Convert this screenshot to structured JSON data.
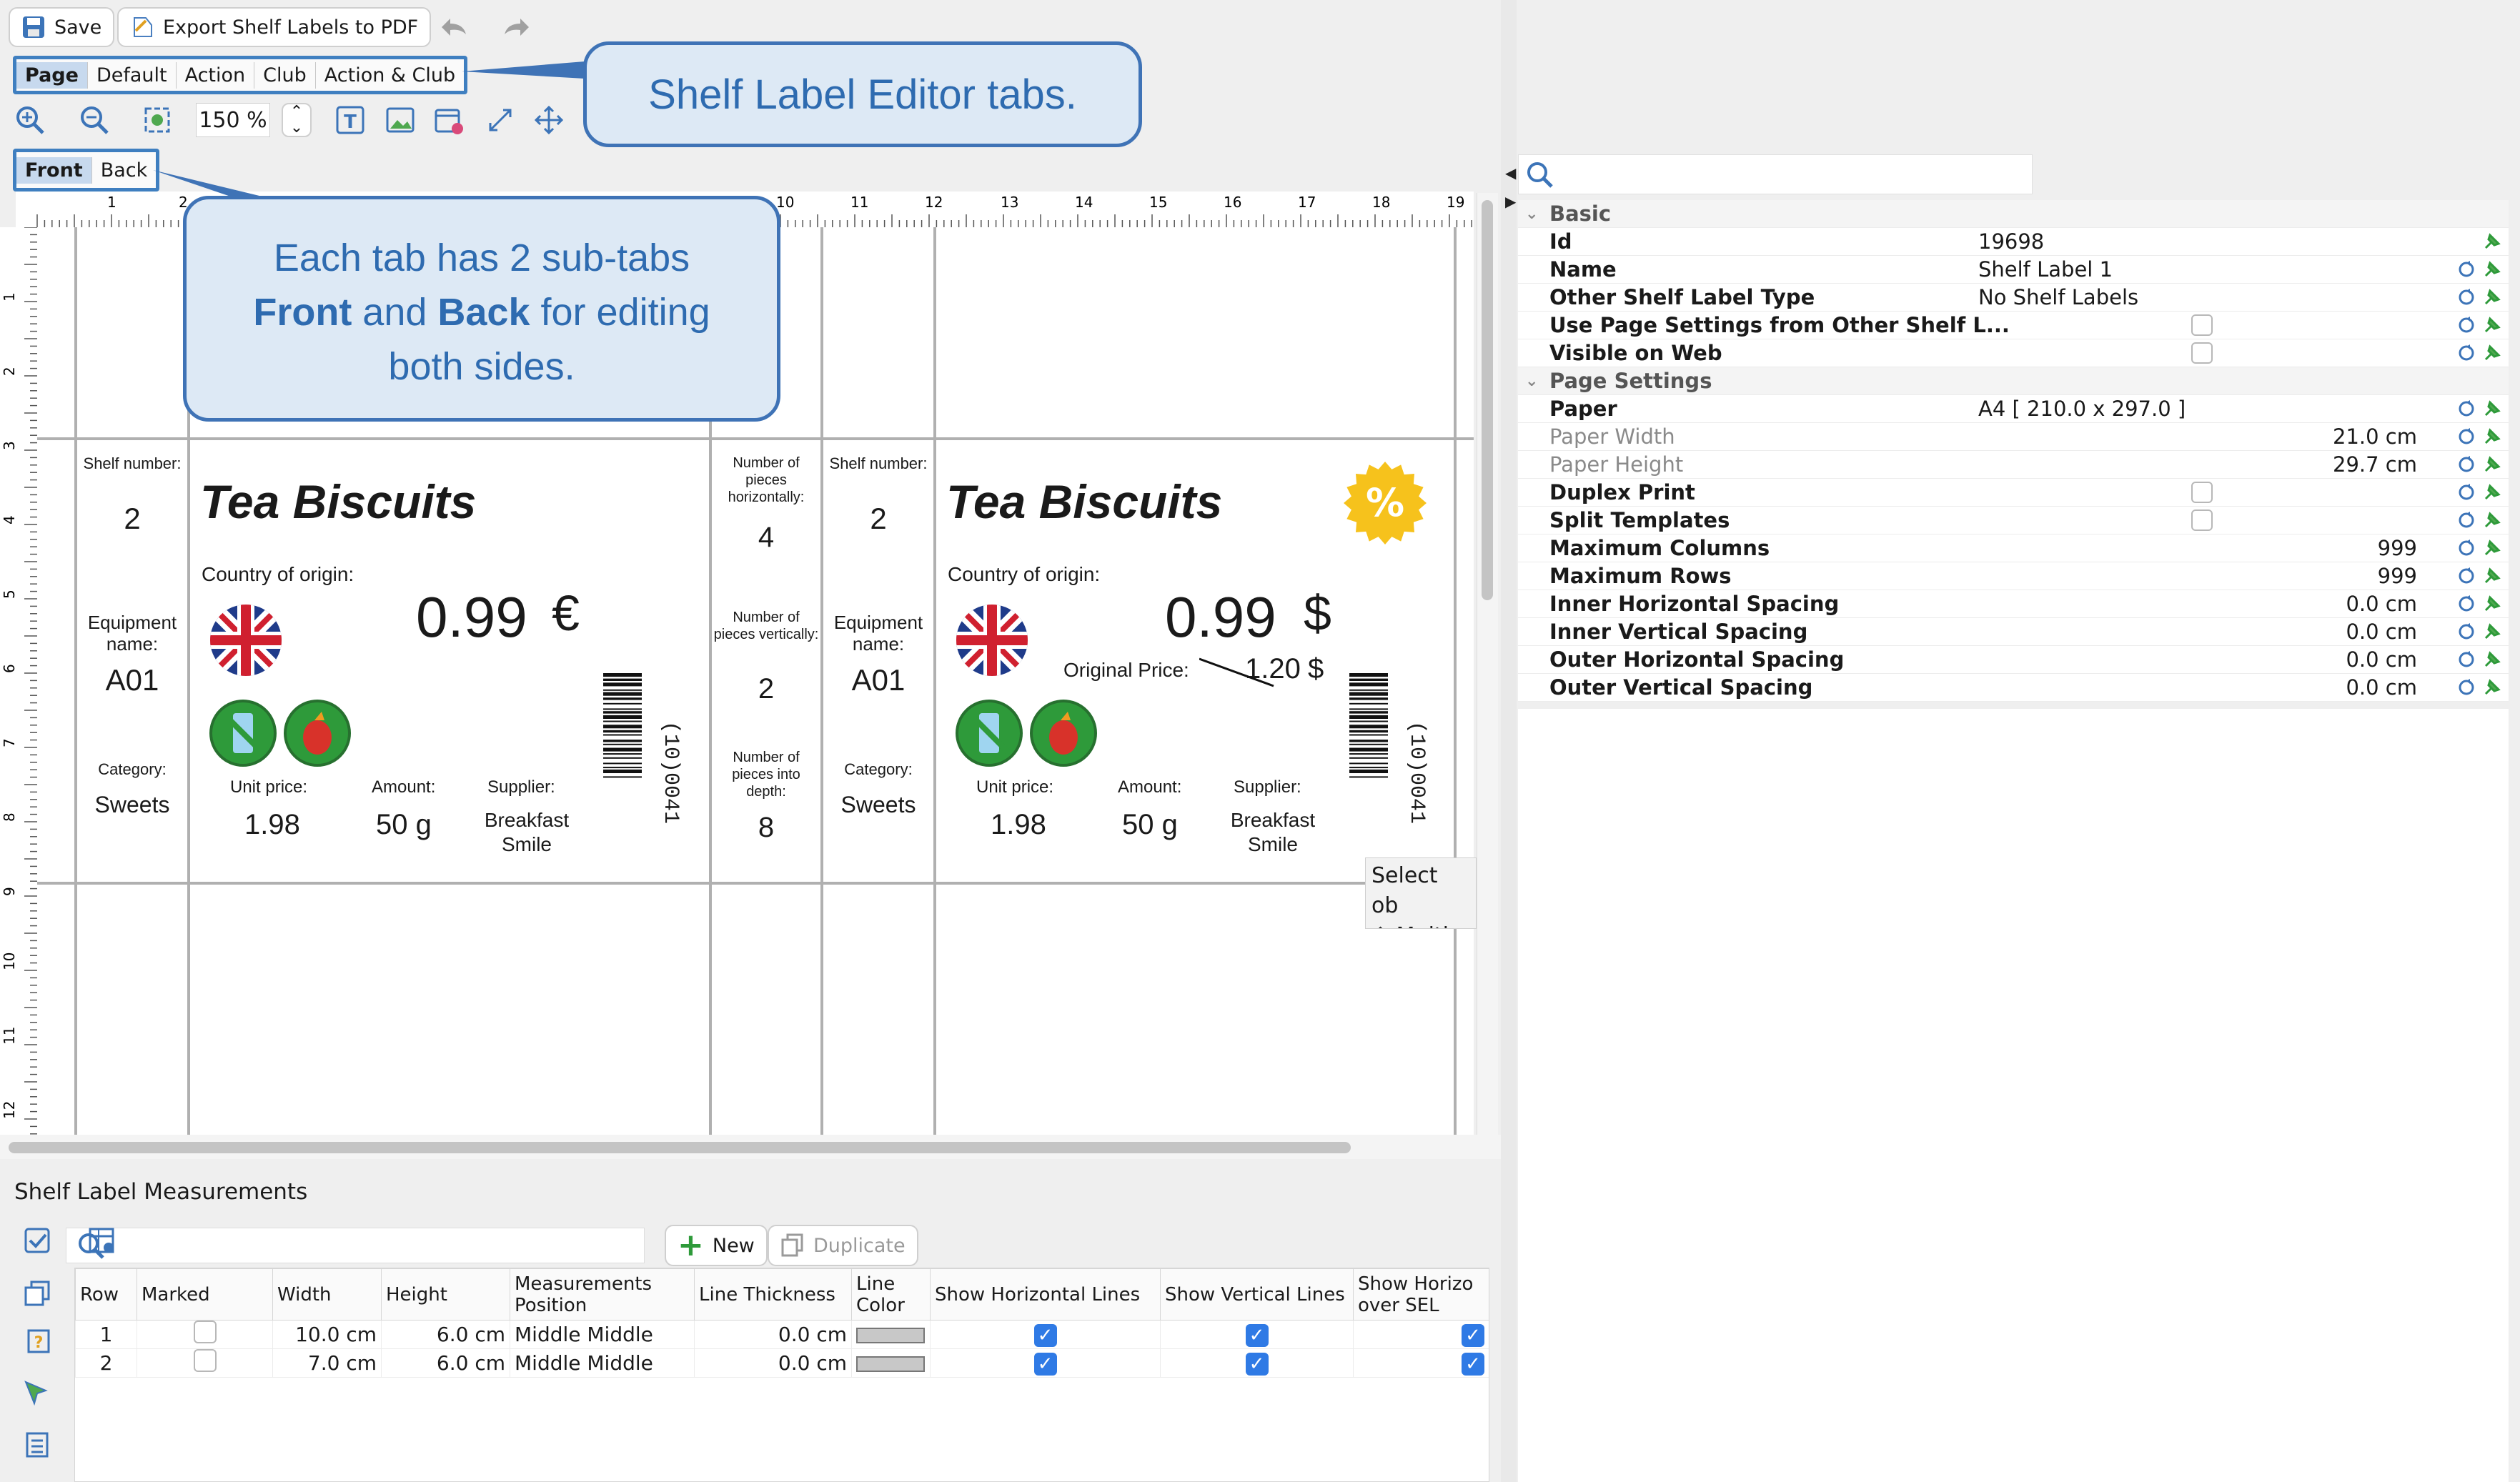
{
  "toolbar": {
    "save_label": "Save",
    "export_label": "Export Shelf Labels to PDF",
    "zoom_value": "150 %"
  },
  "tabs": [
    {
      "label": "Page"
    },
    {
      "label": "Default"
    },
    {
      "label": "Action"
    },
    {
      "label": "Club"
    },
    {
      "label": "Action & Club"
    }
  ],
  "subtabs": [
    {
      "label": "Front"
    },
    {
      "label": "Back"
    }
  ],
  "callouts": {
    "tabs_text": "Shelf Label Editor tabs.",
    "subtabs_line1": "Each tab has 2 sub-tabs",
    "subtabs_front": "Front",
    "subtabs_and": " and ",
    "subtabs_back": "Back",
    "subtabs_rest": " for editing",
    "subtabs_line3": "both sides."
  },
  "ruler": {
    "top": [
      "1",
      "2",
      "10",
      "11",
      "12",
      "13",
      "14",
      "15",
      "16",
      "17",
      "18",
      "19"
    ],
    "left": [
      "1",
      "2",
      "3",
      "4",
      "5",
      "6",
      "7",
      "8",
      "9",
      "10",
      "11",
      "12"
    ]
  },
  "label": {
    "shelf_number_caption": "Shelf number:",
    "shelf_number": "2",
    "equipment_caption": "Equipment name:",
    "equipment": "A01",
    "category_caption": "Category:",
    "category": "Sweets",
    "title": "Tea Biscuits",
    "country_caption": "Country of origin:",
    "price": "0.99",
    "currency_left": "€",
    "currency_right": "$",
    "original_price_caption": "Original Price:",
    "original_price": "1.20",
    "unit_price_caption": "Unit price:",
    "unit_price": "1.98",
    "amount_caption": "Amount:",
    "amount": "50 g",
    "supplier_caption": "Supplier:",
    "supplier_line1": "Breakfast",
    "supplier_line2": "Smile",
    "barcode_text": "(10)0041",
    "pieces_h_caption": "Number of pieces horizontally:",
    "pieces_h": "4",
    "pieces_v_caption": "Number of pieces vertically:",
    "pieces_v": "2",
    "pieces_d_caption": "Number of pieces into depth:",
    "pieces_d": "8",
    "discount_symbol": "%"
  },
  "tooltip": {
    "line1": "Select ob",
    "line2": "⇧ Multip"
  },
  "properties": {
    "sections": {
      "basic": "Basic",
      "page": "Page Settings"
    },
    "rows": [
      {
        "name": "Id",
        "value": "19698"
      },
      {
        "name": "Name",
        "value": "Shelf Label 1"
      },
      {
        "name": "Other Shelf Label Type",
        "value": "No Shelf Labels"
      },
      {
        "name": "Use Page Settings from Other Shelf L...",
        "value": ""
      },
      {
        "name": "Visible on Web",
        "value": ""
      },
      {
        "name": "Paper",
        "value": "A4 [ 210.0 x 297.0 ]"
      },
      {
        "name": "Paper Width",
        "value": "21.0 cm"
      },
      {
        "name": "Paper Height",
        "value": "29.7 cm"
      },
      {
        "name": "Duplex Print",
        "value": ""
      },
      {
        "name": "Split Templates",
        "value": ""
      },
      {
        "name": "Maximum Columns",
        "value": "999"
      },
      {
        "name": "Maximum Rows",
        "value": "999"
      },
      {
        "name": "Inner Horizontal Spacing",
        "value": "0.0 cm"
      },
      {
        "name": "Inner Vertical Spacing",
        "value": "0.0 cm"
      },
      {
        "name": "Outer Horizontal Spacing",
        "value": "0.0 cm"
      },
      {
        "name": "Outer Vertical Spacing",
        "value": "0.0 cm"
      }
    ]
  },
  "measurements": {
    "title": "Shelf Label Measurements",
    "new_label": "New",
    "duplicate_label": "Duplicate",
    "columns": [
      "Row",
      "Marked",
      "Width",
      "Height",
      "Measurements Position",
      "Line Thickness",
      "Line Color",
      "Show Horizontal Lines",
      "Show Vertical Lines",
      "Show Horizo over SEL"
    ],
    "rows": [
      {
        "row": "1",
        "width": "10.0 cm",
        "height": "6.0 cm",
        "position": "Middle Middle",
        "thickness": "0.0 cm"
      },
      {
        "row": "2",
        "width": "7.0 cm",
        "height": "6.0 cm",
        "position": "Middle Middle",
        "thickness": "0.0 cm"
      }
    ]
  },
  "colors": {
    "accent": "#3f7fc0",
    "callout_bg": "#dde9f5",
    "check_blue": "#2f7ae5",
    "discount_yellow": "#f6c21c"
  }
}
